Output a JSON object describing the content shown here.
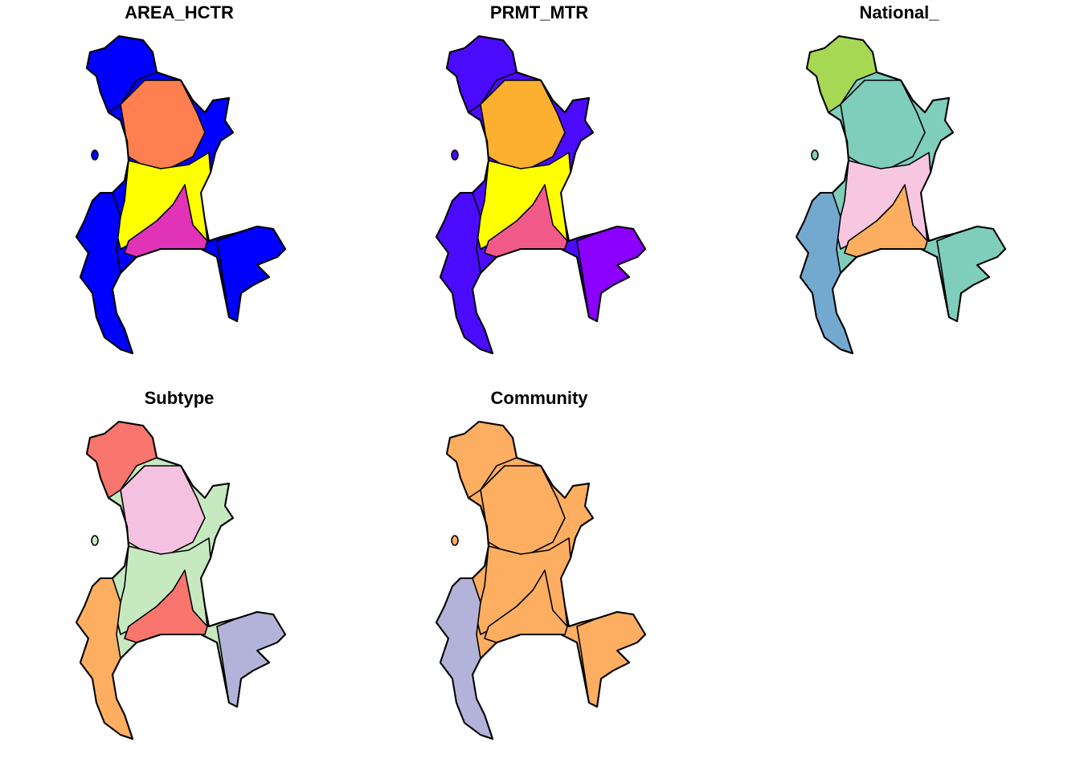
{
  "panels": [
    {
      "title": "AREA_HCTR"
    },
    {
      "title": "PRMT_MTR"
    },
    {
      "title": "National_"
    },
    {
      "title": "Subtype"
    },
    {
      "title": "Community"
    }
  ]
}
